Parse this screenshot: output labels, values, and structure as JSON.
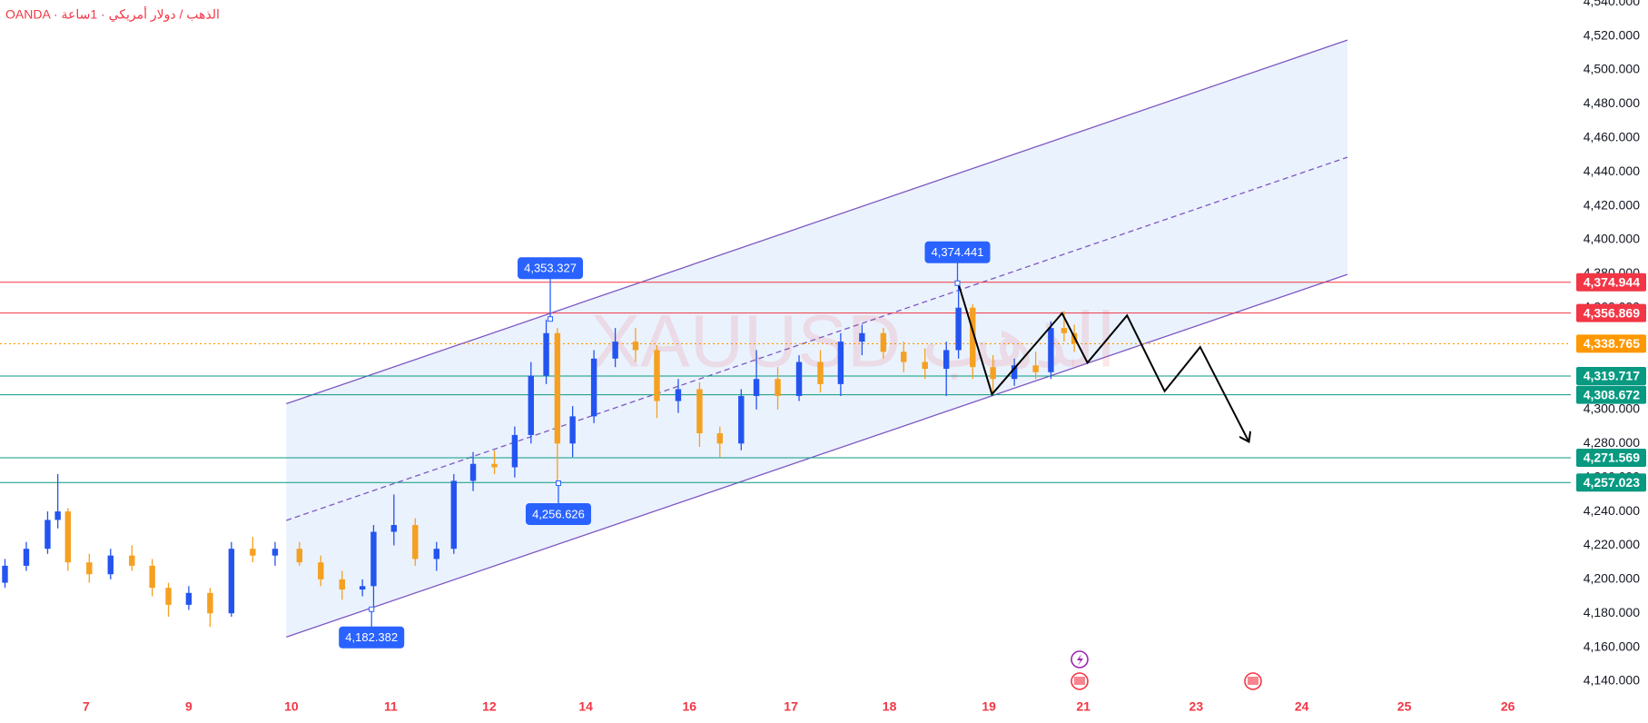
{
  "chart_data": {
    "type": "candlestick",
    "title": "OANDA · الذهب / دولار أمريكي · 1ساعة",
    "watermark": "XAUUSD الذهب",
    "up_color": "#2454f0",
    "down_color": "#f5a020",
    "xlim": [
      -0.849,
      14.62
    ],
    "ylim": [
      4129.3,
      4541.2
    ],
    "xticks": [
      {
        "value": 0,
        "label": "7"
      },
      {
        "value": 1.01,
        "label": "9"
      },
      {
        "value": 2.02,
        "label": "10"
      },
      {
        "value": 3.0,
        "label": "11"
      },
      {
        "value": 3.97,
        "label": "12"
      },
      {
        "value": 4.92,
        "label": "14"
      },
      {
        "value": 5.94,
        "label": "16"
      },
      {
        "value": 6.94,
        "label": "17"
      },
      {
        "value": 7.91,
        "label": "18"
      },
      {
        "value": 8.89,
        "label": "19"
      },
      {
        "value": 9.82,
        "label": "21"
      },
      {
        "value": 10.93,
        "label": "23"
      },
      {
        "value": 11.97,
        "label": "24"
      },
      {
        "value": 12.98,
        "label": "25"
      },
      {
        "value": 14.0,
        "label": "26"
      }
    ],
    "yticks": [
      {
        "value": 4140,
        "label": "4,140.000"
      },
      {
        "value": 4160,
        "label": "4,160.000"
      },
      {
        "value": 4180,
        "label": "4,180.000"
      },
      {
        "value": 4200,
        "label": "4,200.000"
      },
      {
        "value": 4220,
        "label": "4,220.000"
      },
      {
        "value": 4240,
        "label": "4,240.000"
      },
      {
        "value": 4260,
        "label": "4,260.000"
      },
      {
        "value": 4280,
        "label": "4,280.000"
      },
      {
        "value": 4300,
        "label": "4,300.000"
      },
      {
        "value": 4320,
        "label": "4,320.000"
      },
      {
        "value": 4340,
        "label": "4,340.000"
      },
      {
        "value": 4360,
        "label": "4,360.000"
      },
      {
        "value": 4380,
        "label": "4,380.000"
      },
      {
        "value": 4400,
        "label": "4,400.000"
      },
      {
        "value": 4420,
        "label": "4,420.000"
      },
      {
        "value": 4440,
        "label": "4,440.000"
      },
      {
        "value": 4460,
        "label": "4,460.000"
      },
      {
        "value": 4480,
        "label": "4,480.000"
      },
      {
        "value": 4500,
        "label": "4,500.000"
      },
      {
        "value": 4520,
        "label": "4,520.000"
      },
      {
        "value": 4540,
        "label": "4,540.000"
      }
    ],
    "x": [
      -0.8,
      -0.59,
      -0.38,
      -0.28,
      -0.18,
      0.03,
      0.24,
      0.45,
      0.65,
      0.81,
      1.01,
      1.22,
      1.43,
      1.64,
      1.86,
      2.1,
      2.31,
      2.52,
      2.72,
      2.83,
      3.03,
      3.24,
      3.45,
      3.62,
      3.81,
      4.02,
      4.22,
      4.38,
      4.53,
      4.64,
      4.79,
      5.0,
      5.21,
      5.41,
      5.62,
      5.83,
      6.04,
      6.24,
      6.45,
      6.6,
      6.81,
      7.02,
      7.23,
      7.43,
      7.64,
      7.85,
      8.05,
      8.26,
      8.47,
      8.59,
      8.73,
      8.93,
      9.14,
      9.35,
      9.5,
      9.63,
      9.73
    ],
    "open": [
      4198,
      4208,
      4218,
      4235,
      4240,
      4210,
      4203,
      4214,
      4208,
      4195,
      4185,
      4192,
      4180,
      4218,
      4214,
      4218,
      4210,
      4200,
      4194,
      4196,
      4228,
      4232,
      4212,
      4218,
      4258,
      4268,
      4266,
      4285,
      4320,
      4345,
      4280,
      4296,
      4330,
      4340,
      4335,
      4305,
      4312,
      4286,
      4280,
      4308,
      4318,
      4308,
      4328,
      4315,
      4340,
      4345,
      4334,
      4328,
      4324,
      4335,
      4360,
      4325,
      4318,
      4326,
      4322,
      4348,
      4345
    ],
    "high": [
      4212,
      4222,
      4240,
      4262,
      4242,
      4215,
      4218,
      4220,
      4212,
      4198,
      4196,
      4195,
      4222,
      4225,
      4222,
      4222,
      4214,
      4205,
      4200,
      4232,
      4250,
      4236,
      4222,
      4262,
      4275,
      4276,
      4290,
      4328,
      4353,
      4348,
      4302,
      4335,
      4348,
      4348,
      4338,
      4318,
      4316,
      4290,
      4312,
      4335,
      4325,
      4332,
      4335,
      4345,
      4350,
      4348,
      4340,
      4336,
      4340,
      4374,
      4362,
      4332,
      4330,
      4334,
      4352,
      4358,
      4350
    ],
    "low": [
      4195,
      4205,
      4215,
      4230,
      4205,
      4198,
      4200,
      4205,
      4190,
      4178,
      4182,
      4172,
      4178,
      4210,
      4208,
      4208,
      4196,
      4188,
      4190,
      4182,
      4220,
      4208,
      4205,
      4215,
      4252,
      4262,
      4260,
      4280,
      4315,
      4256,
      4272,
      4292,
      4325,
      4328,
      4295,
      4298,
      4278,
      4272,
      4276,
      4300,
      4300,
      4305,
      4310,
      4308,
      4332,
      4330,
      4322,
      4318,
      4308,
      4330,
      4318,
      4310,
      4314,
      4318,
      4318,
      4340,
      4334
    ],
    "close": [
      4208,
      4218,
      4235,
      4240,
      4210,
      4203,
      4214,
      4208,
      4195,
      4185,
      4192,
      4180,
      4218,
      4214,
      4218,
      4210,
      4200,
      4194,
      4196,
      4228,
      4232,
      4212,
      4218,
      4258,
      4268,
      4266,
      4285,
      4320,
      4345,
      4280,
      4296,
      4330,
      4340,
      4335,
      4305,
      4312,
      4286,
      4280,
      4308,
      4318,
      4308,
      4328,
      4315,
      4340,
      4345,
      4334,
      4328,
      4324,
      4335,
      4360,
      4325,
      4318,
      4326,
      4322,
      4348,
      4345,
      4339
    ],
    "channel": {
      "x": [
        1.97,
        12.42
      ],
      "upper": [
        4303.4,
        4517.6
      ],
      "middle": [
        4234.7,
        4448.6
      ],
      "lower": [
        4166.0,
        4379.6
      ],
      "color": "#7e57c2",
      "fill": "#e3eefc"
    },
    "levels": [
      {
        "value": 4374.944,
        "label": "4,374.944",
        "color": "#f23645"
      },
      {
        "value": 4356.869,
        "label": "4,356.869",
        "color": "#f23645"
      },
      {
        "value": 4338.765,
        "label": "4,338.765",
        "color": "#ff9800"
      },
      {
        "value": 4319.717,
        "label": "4,319.717",
        "color": "#089981"
      },
      {
        "value": 4308.672,
        "label": "4,308.672",
        "color": "#089981"
      },
      {
        "value": 4271.569,
        "label": "4,271.569",
        "color": "#089981"
      },
      {
        "value": 4257.023,
        "label": "4,257.023",
        "color": "#089981"
      }
    ],
    "callouts": [
      {
        "x": 4.57,
        "value": 4353.327,
        "label": "4,353.327"
      },
      {
        "x": 8.58,
        "value": 4374.441,
        "label": "4,374.441"
      },
      {
        "x": 4.65,
        "value": 4256.626,
        "label": "4,256.626"
      },
      {
        "x": 2.81,
        "value": 4182.382,
        "label": "4,182.382"
      }
    ],
    "projection": {
      "x": [
        8.59,
        8.92,
        9.61,
        9.86,
        10.25,
        10.62,
        10.97,
        11.45
      ],
      "values": [
        4374,
        4309,
        4356.7,
        4327.6,
        4355.4,
        4310.8,
        4336.8,
        4281
      ],
      "color": "#000000"
    }
  }
}
